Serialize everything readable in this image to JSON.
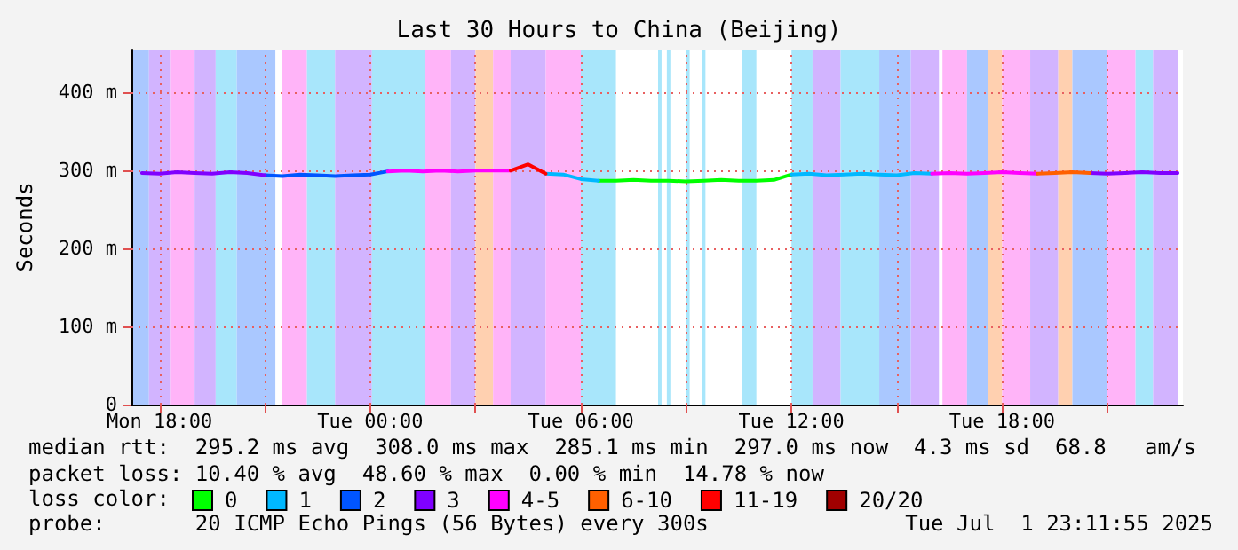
{
  "chart_data": {
    "type": "line",
    "title": "Last 30 Hours to China (Beijing)",
    "ylabel": "Seconds",
    "xlim": [
      "2025-06-30T17:12",
      "2025-07-01T23:09"
    ],
    "ylim": [
      0,
      455
    ],
    "xticks": [
      {
        "value": "2025-06-30T18:00",
        "label": "Mon 18:00"
      },
      {
        "value": "2025-06-30T21:00",
        "label": null
      },
      {
        "value": "2025-07-01T00:00",
        "label": "Tue 00:00"
      },
      {
        "value": "2025-07-01T03:00",
        "label": null
      },
      {
        "value": "2025-07-01T06:00",
        "label": "Tue 06:00"
      },
      {
        "value": "2025-07-01T09:00",
        "label": null
      },
      {
        "value": "2025-07-01T12:00",
        "label": "Tue 12:00"
      },
      {
        "value": "2025-07-01T15:00",
        "label": null
      },
      {
        "value": "2025-07-01T18:00",
        "label": "Tue 18:00"
      },
      {
        "value": "2025-07-01T21:00",
        "label": null
      }
    ],
    "yticks": [
      0,
      {
        "value": 100,
        "label": "100 m"
      },
      {
        "value": 200,
        "label": "200 m"
      },
      {
        "value": 300,
        "label": "300 m"
      },
      {
        "value": 400,
        "label": "400 m"
      }
    ],
    "grid": true,
    "legend": "bottom",
    "legend_title": "loss color:",
    "marker": "none",
    "line_style": "solid",
    "series": [
      {
        "name": "0",
        "color": "#00ff00",
        "x": [
          "2025-07-01T06:30",
          "2025-07-01T07:00",
          "2025-07-01T07:30",
          "2025-07-01T08:00",
          "2025-07-01T08:30",
          "2025-07-01T09:00",
          "2025-07-01T09:30",
          "2025-07-01T10:00",
          "2025-07-01T10:30",
          "2025-07-01T11:00",
          "2025-07-01T11:30",
          "2025-07-01T12:00"
        ],
        "values": [
          287,
          287,
          288,
          287,
          287,
          286,
          287,
          288,
          287,
          287,
          288,
          295
        ]
      },
      {
        "name": "1",
        "color": "#00b8ff",
        "x": [
          "2025-07-01T05:00",
          "2025-07-01T05:30",
          "2025-07-01T06:00",
          "2025-07-01T06:30",
          "2025-07-01T09:00",
          "2025-07-01T12:00",
          "2025-07-01T12:30",
          "2025-07-01T13:00",
          "2025-07-01T13:30",
          "2025-07-01T14:00",
          "2025-07-01T14:30",
          "2025-07-01T15:00",
          "2025-07-01T15:30",
          "2025-07-01T16:00"
        ],
        "values": [
          296,
          295,
          289,
          287,
          null,
          295,
          296,
          294,
          295,
          296,
          295,
          294,
          297,
          296
        ]
      },
      {
        "name": "2",
        "color": "#0055ff",
        "x": [
          "2025-06-30T21:00",
          "2025-06-30T21:30",
          "2025-06-30T22:00",
          "2025-06-30T22:30",
          "2025-06-30T23:00",
          "2025-06-30T23:30",
          "2025-07-01T00:00",
          "2025-07-01T00:30"
        ],
        "values": [
          294,
          293,
          295,
          294,
          293,
          294,
          295,
          299
        ]
      },
      {
        "name": "3",
        "color": "#8000ff",
        "x": [
          "2025-06-30T17:30",
          "2025-06-30T18:00",
          "2025-06-30T18:30",
          "2025-06-30T19:00",
          "2025-06-30T19:30",
          "2025-06-30T20:00",
          "2025-06-30T20:30",
          "2025-06-30T21:00",
          "2025-07-01T09:00",
          "2025-07-01T20:30",
          "2025-07-01T21:00",
          "2025-07-01T21:30",
          "2025-07-01T22:00",
          "2025-07-01T22:30",
          "2025-07-01T23:00"
        ],
        "values": [
          297,
          296,
          298,
          297,
          296,
          298,
          297,
          294,
          null,
          297,
          296,
          297,
          298,
          297,
          297
        ]
      },
      {
        "name": "4-5",
        "color": "#ff00ff",
        "x": [
          "2025-07-01T00:30",
          "2025-07-01T01:00",
          "2025-07-01T01:30",
          "2025-07-01T02:00",
          "2025-07-01T02:30",
          "2025-07-01T03:00",
          "2025-07-01T03:30",
          "2025-07-01T04:00",
          "2025-07-01T09:00",
          "2025-07-01T16:00",
          "2025-07-01T16:30",
          "2025-07-01T17:00",
          "2025-07-01T17:30",
          "2025-07-01T18:00",
          "2025-07-01T18:30",
          "2025-07-01T19:00"
        ],
        "values": [
          299,
          300,
          299,
          300,
          299,
          300,
          300,
          300,
          null,
          296,
          297,
          296,
          297,
          298,
          297,
          296
        ]
      },
      {
        "name": "6-10",
        "color": "#ff6000",
        "x": [
          "2025-07-01T19:00",
          "2025-07-01T19:30",
          "2025-07-01T20:00",
          "2025-07-01T20:30"
        ],
        "values": [
          296,
          297,
          298,
          297
        ]
      },
      {
        "name": "11-19",
        "color": "#ff0000",
        "x": [
          "2025-07-01T04:00",
          "2025-07-01T04:30",
          "2025-07-01T05:00"
        ],
        "values": [
          300,
          308,
          296
        ]
      },
      {
        "name": "20/20",
        "color": "#a00000"
      }
    ],
    "bands": [
      {
        "axis": "x",
        "from": "2025-06-30T17:15",
        "to": "2025-06-30T17:42",
        "color": "#aac8ff"
      },
      {
        "axis": "x",
        "from": "2025-06-30T17:42",
        "to": "2025-06-30T18:18",
        "color": "#d2b4ff"
      },
      {
        "axis": "x",
        "from": "2025-06-30T18:18",
        "to": "2025-06-30T19:00",
        "color": "#ffb4f8"
      },
      {
        "axis": "x",
        "from": "2025-06-30T19:00",
        "to": "2025-06-30T19:36",
        "color": "#d2b4ff"
      },
      {
        "axis": "x",
        "from": "2025-06-30T19:36",
        "to": "2025-06-30T20:12",
        "color": "#a8e6fb"
      },
      {
        "axis": "x",
        "from": "2025-06-30T20:12",
        "to": "2025-06-30T21:18",
        "color": "#aac8ff"
      },
      {
        "axis": "x",
        "from": "2025-06-30T21:30",
        "to": "2025-06-30T22:12",
        "color": "#ffb4f8"
      },
      {
        "axis": "x",
        "from": "2025-06-30T22:12",
        "to": "2025-06-30T23:00",
        "color": "#a8e6fb"
      },
      {
        "axis": "x",
        "from": "2025-06-30T23:00",
        "to": "2025-07-01T00:03",
        "color": "#d2b4ff"
      },
      {
        "axis": "x",
        "from": "2025-07-01T00:03",
        "to": "2025-07-01T01:33",
        "color": "#a8e6fb"
      },
      {
        "axis": "x",
        "from": "2025-07-01T01:33",
        "to": "2025-07-01T02:18",
        "color": "#ffb4f8"
      },
      {
        "axis": "x",
        "from": "2025-07-01T02:18",
        "to": "2025-07-01T03:00",
        "color": "#d2b4ff"
      },
      {
        "axis": "x",
        "from": "2025-07-01T03:00",
        "to": "2025-07-01T03:30",
        "color": "#ffd0b0"
      },
      {
        "axis": "x",
        "from": "2025-07-01T03:30",
        "to": "2025-07-01T04:00",
        "color": "#ffb4f8"
      },
      {
        "axis": "x",
        "from": "2025-07-01T04:00",
        "to": "2025-07-01T05:00",
        "color": "#d2b4ff"
      },
      {
        "axis": "x",
        "from": "2025-07-01T05:00",
        "to": "2025-07-01T06:00",
        "color": "#ffb4f8"
      },
      {
        "axis": "x",
        "from": "2025-07-01T06:00",
        "to": "2025-07-01T07:00",
        "color": "#a8e6fb"
      },
      {
        "axis": "x",
        "from": "2025-07-01T08:12",
        "to": "2025-07-01T08:18",
        "color": "#a8e6fb"
      },
      {
        "axis": "x",
        "from": "2025-07-01T08:27",
        "to": "2025-07-01T08:33",
        "color": "#a8e6fb"
      },
      {
        "axis": "x",
        "from": "2025-07-01T09:00",
        "to": "2025-07-01T09:06",
        "color": "#a8e6fb"
      },
      {
        "axis": "x",
        "from": "2025-07-01T09:27",
        "to": "2025-07-01T09:33",
        "color": "#a8e6fb"
      },
      {
        "axis": "x",
        "from": "2025-07-01T10:36",
        "to": "2025-07-01T11:00",
        "color": "#a8e6fb"
      },
      {
        "axis": "x",
        "from": "2025-07-01T12:00",
        "to": "2025-07-01T12:36",
        "color": "#a8e6fb"
      },
      {
        "axis": "x",
        "from": "2025-07-01T12:36",
        "to": "2025-07-01T13:24",
        "color": "#d2b4ff"
      },
      {
        "axis": "x",
        "from": "2025-07-01T13:24",
        "to": "2025-07-01T14:30",
        "color": "#a8e6fb"
      },
      {
        "axis": "x",
        "from": "2025-07-01T14:30",
        "to": "2025-07-01T15:24",
        "color": "#aac8ff"
      },
      {
        "axis": "x",
        "from": "2025-07-01T15:24",
        "to": "2025-07-01T16:12",
        "color": "#d2b4ff"
      },
      {
        "axis": "x",
        "from": "2025-07-01T16:18",
        "to": "2025-07-01T17:00",
        "color": "#ffb4f8"
      },
      {
        "axis": "x",
        "from": "2025-07-01T17:00",
        "to": "2025-07-01T17:36",
        "color": "#aac8ff"
      },
      {
        "axis": "x",
        "from": "2025-07-01T17:36",
        "to": "2025-07-01T18:00",
        "color": "#ffd0b0"
      },
      {
        "axis": "x",
        "from": "2025-07-01T18:00",
        "to": "2025-07-01T18:48",
        "color": "#ffb4f8"
      },
      {
        "axis": "x",
        "from": "2025-07-01T18:48",
        "to": "2025-07-01T19:36",
        "color": "#d2b4ff"
      },
      {
        "axis": "x",
        "from": "2025-07-01T19:36",
        "to": "2025-07-01T20:00",
        "color": "#ffd0b0"
      },
      {
        "axis": "x",
        "from": "2025-07-01T20:00",
        "to": "2025-07-01T21:00",
        "color": "#aac8ff"
      },
      {
        "axis": "x",
        "from": "2025-07-01T21:00",
        "to": "2025-07-01T21:48",
        "color": "#ffb4f8"
      },
      {
        "axis": "x",
        "from": "2025-07-01T21:48",
        "to": "2025-07-01T22:18",
        "color": "#a8e6fb"
      },
      {
        "axis": "x",
        "from": "2025-07-01T22:18",
        "to": "2025-07-01T23:00",
        "color": "#d2b4ff"
      }
    ],
    "annotations": [
      "median rtt:  295.2 ms avg  308.0 ms max  285.1 ms min  297.0 ms now  4.3 ms sd  68.8   am/s",
      "packet loss: 10.40 % avg  48.60 % max  0.00 % min  14.78 % now",
      "probe:       20 ICMP Echo Pings (56 Bytes) every 300s",
      "Tue Jul  1 23:11:55 2025"
    ]
  }
}
